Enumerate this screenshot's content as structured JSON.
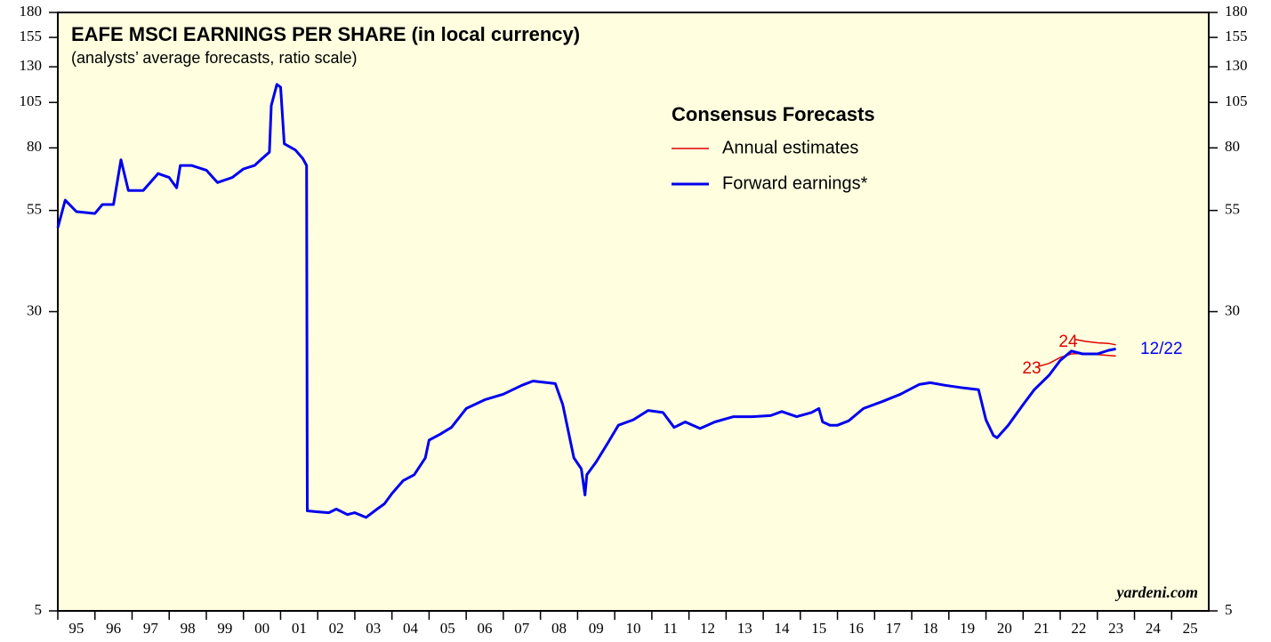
{
  "chart_data": {
    "type": "line",
    "title": "EAFE MSCI EARNINGS PER SHARE (in local currency)",
    "subtitle": "(analysts’ average forecasts, ratio scale)",
    "legend_title": "Consensus Forecasts",
    "log_scale": true,
    "ylim": [
      5,
      180
    ],
    "yticks": [
      5,
      30,
      55,
      80,
      105,
      130,
      155,
      180
    ],
    "xlim": [
      1995,
      2026
    ],
    "xticks": [
      {
        "value": 1995,
        "label": "95"
      },
      {
        "value": 1996,
        "label": "96"
      },
      {
        "value": 1997,
        "label": "97"
      },
      {
        "value": 1998,
        "label": "98"
      },
      {
        "value": 1999,
        "label": "99"
      },
      {
        "value": 2000,
        "label": "00"
      },
      {
        "value": 2001,
        "label": "01"
      },
      {
        "value": 2002,
        "label": "02"
      },
      {
        "value": 2003,
        "label": "03"
      },
      {
        "value": 2004,
        "label": "04"
      },
      {
        "value": 2005,
        "label": "05"
      },
      {
        "value": 2006,
        "label": "06"
      },
      {
        "value": 2007,
        "label": "07"
      },
      {
        "value": 2008,
        "label": "08"
      },
      {
        "value": 2009,
        "label": "09"
      },
      {
        "value": 2010,
        "label": "10"
      },
      {
        "value": 2011,
        "label": "11"
      },
      {
        "value": 2012,
        "label": "12"
      },
      {
        "value": 2013,
        "label": "13"
      },
      {
        "value": 2014,
        "label": "14"
      },
      {
        "value": 2015,
        "label": "15"
      },
      {
        "value": 2016,
        "label": "16"
      },
      {
        "value": 2017,
        "label": "17"
      },
      {
        "value": 2018,
        "label": "18"
      },
      {
        "value": 2019,
        "label": "19"
      },
      {
        "value": 2020,
        "label": "20"
      },
      {
        "value": 2021,
        "label": "21"
      },
      {
        "value": 2022,
        "label": "22"
      },
      {
        "value": 2023,
        "label": "23"
      },
      {
        "value": 2024,
        "label": "24"
      },
      {
        "value": 2025,
        "label": "25"
      }
    ],
    "series": [
      {
        "name": "Annual estimates",
        "color": "#e00000",
        "x": [
          2021.4,
          2021.7,
          2022.0,
          2022.3,
          2022.7,
          2023.0,
          2023.5,
          2023.5,
          2022.4,
          2022.7,
          2023.0,
          2023.3,
          2023.5
        ],
        "values": [
          21.6,
          22.0,
          22.8,
          23.3,
          23.4,
          23.2,
          23.0,
          null,
          25.4,
          25.1,
          24.9,
          24.8,
          24.6
        ]
      },
      {
        "name": "Forward earnings*",
        "color": "#0000ee",
        "x": [
          1995.0,
          1995.2,
          1995.5,
          1996.0,
          1996.2,
          1996.5,
          1996.7,
          1996.9,
          1997.3,
          1997.7,
          1998.0,
          1998.2,
          1998.3,
          1998.6,
          1999.0,
          1999.3,
          1999.7,
          2000.0,
          2000.3,
          2000.5,
          2000.7,
          2000.75,
          2000.9,
          2001.0,
          2001.1,
          2001.4,
          2001.6,
          2001.7,
          2001.72,
          2002.0,
          2002.3,
          2002.5,
          2002.8,
          2003.0,
          2003.3,
          2003.6,
          2003.8,
          2004.0,
          2004.3,
          2004.6,
          2004.9,
          2005.0,
          2005.3,
          2005.6,
          2006.0,
          2006.5,
          2007.0,
          2007.5,
          2007.8,
          2008.0,
          2008.4,
          2008.6,
          2008.9,
          2009.1,
          2009.2,
          2009.25,
          2009.5,
          2009.8,
          2010.1,
          2010.5,
          2010.9,
          2011.3,
          2011.6,
          2011.9,
          2012.3,
          2012.7,
          2013.2,
          2013.7,
          2014.2,
          2014.5,
          2014.9,
          2015.3,
          2015.5,
          2015.6,
          2015.8,
          2016.0,
          2016.3,
          2016.7,
          2017.2,
          2017.7,
          2018.2,
          2018.5,
          2018.9,
          2019.4,
          2019.8,
          2020.0,
          2020.2,
          2020.3,
          2020.6,
          2021.0,
          2021.3,
          2021.7,
          2022.0,
          2022.3,
          2022.6,
          2023.0,
          2023.3,
          2023.5
        ],
        "values": [
          49.6,
          58.5,
          54.6,
          54,
          57,
          57,
          74.5,
          62,
          62,
          68.6,
          67,
          63,
          72,
          72,
          70,
          65,
          67,
          70.5,
          72,
          75,
          78,
          103,
          117,
          115,
          82,
          79,
          75,
          72,
          9.1,
          9.05,
          9,
          9.2,
          8.9,
          9,
          8.75,
          9.2,
          9.5,
          10.1,
          10.9,
          11.3,
          12.5,
          13.9,
          14.4,
          15,
          16.8,
          17.7,
          18.3,
          19.3,
          19.8,
          19.7,
          19.5,
          17.2,
          12.5,
          11.7,
          10,
          11.3,
          12.2,
          13.6,
          15.2,
          15.7,
          16.6,
          16.4,
          15,
          15.5,
          14.9,
          15.5,
          16,
          16,
          16.1,
          16.5,
          16,
          16.4,
          16.8,
          15.5,
          15.2,
          15.2,
          15.6,
          16.8,
          17.5,
          18.3,
          19.4,
          19.6,
          19.3,
          19,
          18.8,
          15.7,
          14.3,
          14.1,
          15.2,
          17.2,
          18.8,
          20.5,
          22.4,
          23.7,
          23.3,
          23.3,
          23.8,
          24
        ]
      }
    ],
    "annotations": [
      {
        "text": "24",
        "color": "#e00000"
      },
      {
        "text": "23",
        "color": "#e00000"
      },
      {
        "text": "12/22",
        "color": "#0000ee"
      },
      {
        "text": "yardeni.com",
        "color": "#000000"
      }
    ]
  }
}
